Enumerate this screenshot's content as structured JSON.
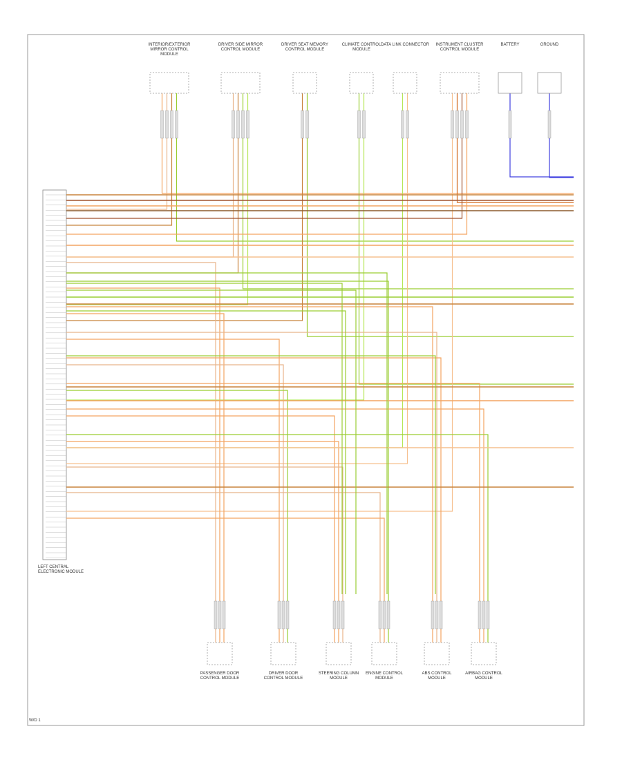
{
  "top_components": [
    {
      "label": "Interior/Exterior Mirror Control Module"
    },
    {
      "label": "Driver Side Mirror Control Module"
    },
    {
      "label": "Driver Seat Memory Control Module"
    },
    {
      "label": "Climate Control Module"
    },
    {
      "label": "Data Link Connector"
    },
    {
      "label": "Instrument Cluster Control Module"
    },
    {
      "label": "Battery"
    },
    {
      "label": "Ground"
    }
  ],
  "bottom_components": [
    {
      "label": "Passenger Door Control Module"
    },
    {
      "label": "Driver Door Control Module"
    },
    {
      "label": "Steering Column Module"
    },
    {
      "label": "Engine Control Module"
    },
    {
      "label": "ABS Control Module"
    },
    {
      "label": "Airbag Control Module"
    }
  ],
  "connector": {
    "label": "Left Central Electronic Module"
  },
  "footer": "W/D 1"
}
